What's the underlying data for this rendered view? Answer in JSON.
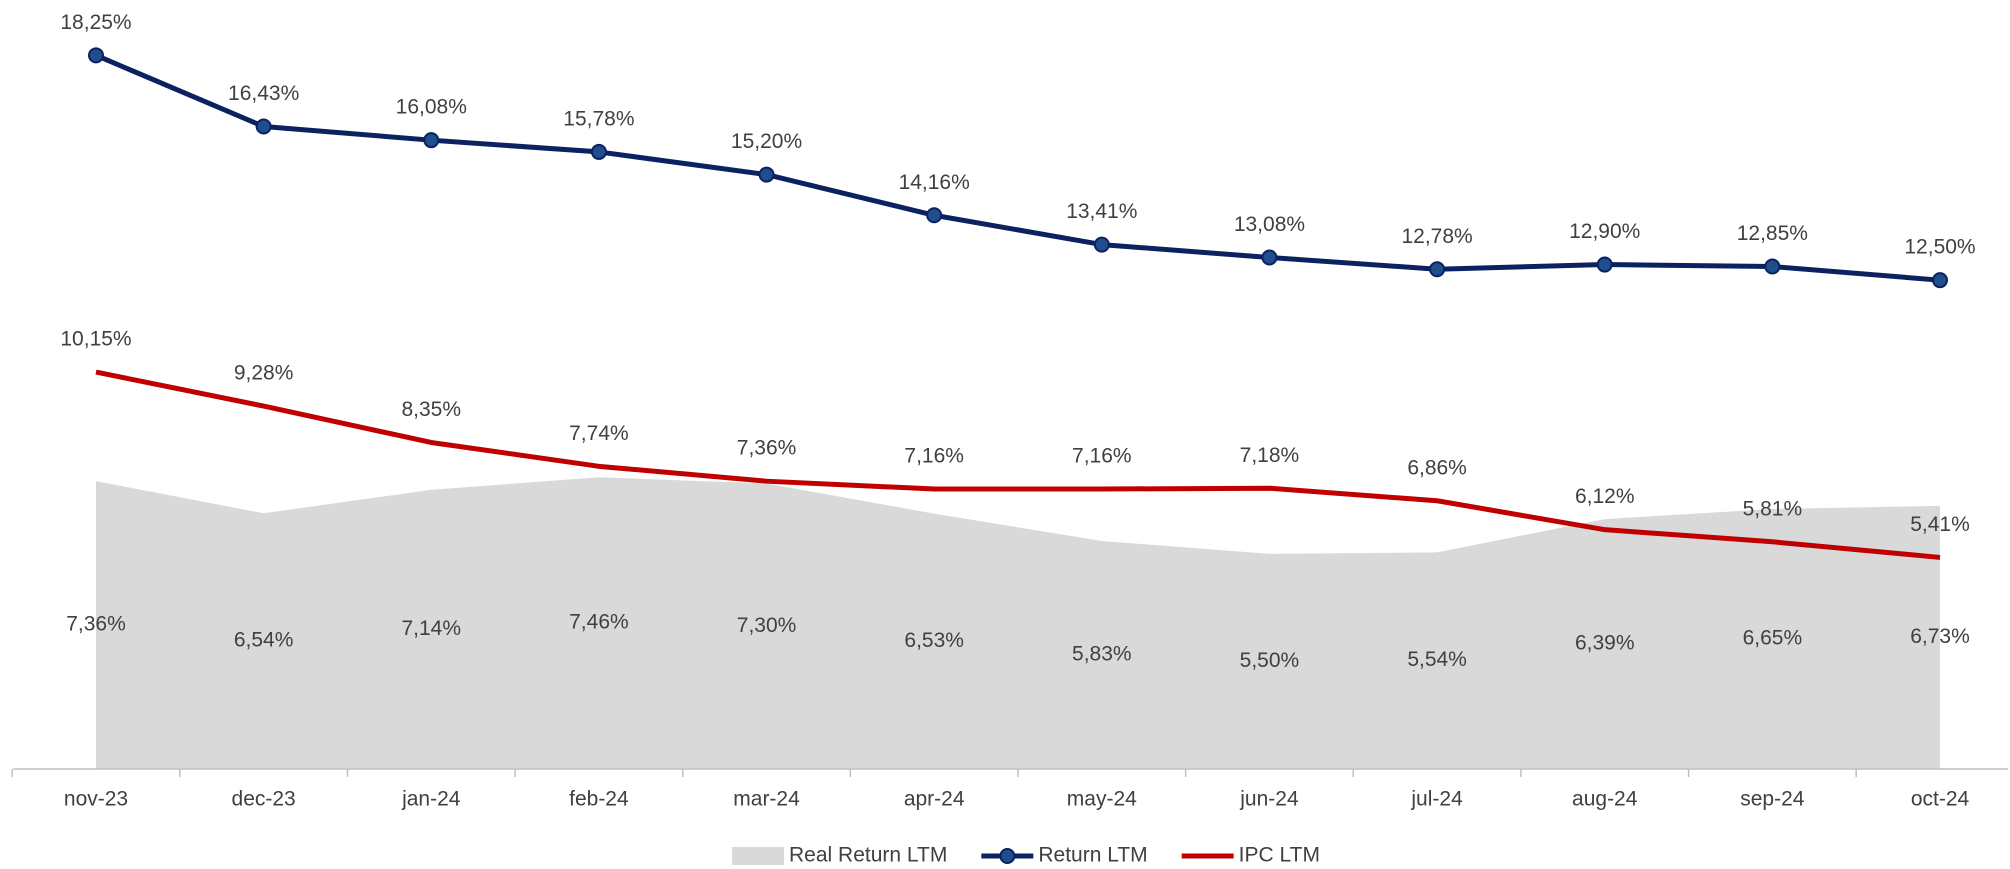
{
  "chart_data": {
    "type": "line",
    "categories": [
      "nov-23",
      "dec-23",
      "jan-24",
      "feb-24",
      "mar-24",
      "apr-24",
      "may-24",
      "jun-24",
      "jul-24",
      "aug-24",
      "sep-24",
      "oct-24"
    ],
    "ylim": [
      0,
      19
    ],
    "series": [
      {
        "name": "Real Return LTM",
        "kind": "area",
        "color": "#d9d9d9",
        "values": [
          7.36,
          6.54,
          7.14,
          7.46,
          7.3,
          6.53,
          5.83,
          5.5,
          5.54,
          6.39,
          6.65,
          6.73
        ],
        "value_labels": [
          "7,36%",
          "6,54%",
          "7,14%",
          "7,46%",
          "7,30%",
          "6,53%",
          "5,83%",
          "5,50%",
          "5,54%",
          "6,39%",
          "6,65%",
          "6,73%"
        ]
      },
      {
        "name": "Return LTM",
        "kind": "line",
        "markers": true,
        "color": "#0b2160",
        "values": [
          18.25,
          16.43,
          16.08,
          15.78,
          15.2,
          14.16,
          13.41,
          13.08,
          12.78,
          12.9,
          12.85,
          12.5
        ],
        "value_labels": [
          "18,25%",
          "16,43%",
          "16,08%",
          "15,78%",
          "15,20%",
          "14,16%",
          "13,41%",
          "13,08%",
          "12,78%",
          "12,90%",
          "12,85%",
          "12,50%"
        ]
      },
      {
        "name": "IPC LTM",
        "kind": "line",
        "markers": false,
        "color": "#c00000",
        "values": [
          10.15,
          9.28,
          8.35,
          7.74,
          7.36,
          7.16,
          7.16,
          7.18,
          6.86,
          6.12,
          5.81,
          5.41
        ],
        "value_labels": [
          "10,15%",
          "9,28%",
          "8,35%",
          "7,74%",
          "7,36%",
          "7,16%",
          "7,16%",
          "7,18%",
          "6,86%",
          "6,12%",
          "5,81%",
          "5,41%"
        ]
      }
    ]
  }
}
